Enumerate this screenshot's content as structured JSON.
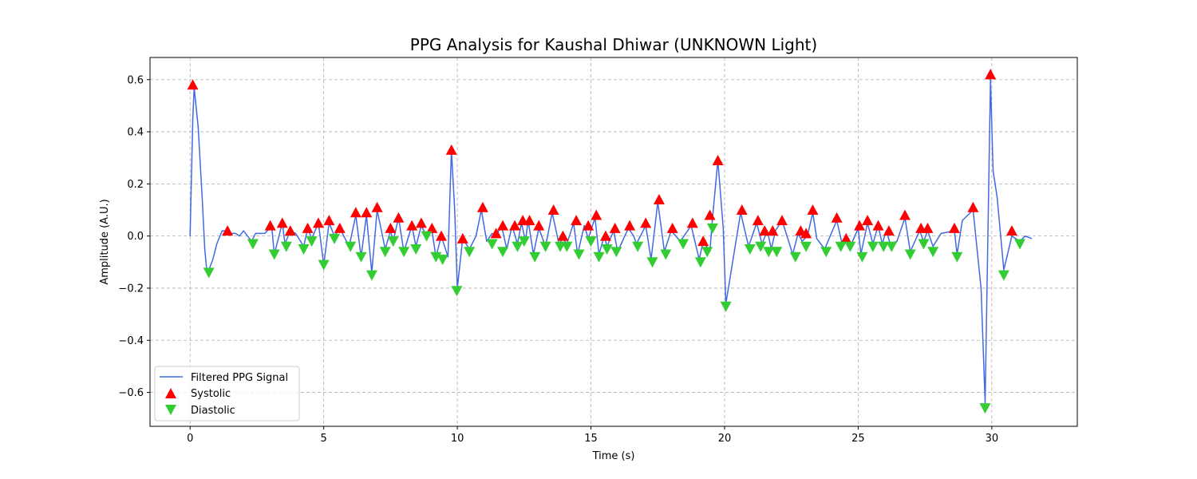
{
  "chart_data": {
    "type": "line",
    "title": "PPG Analysis for Kaushal Dhiwar (UNKNOWN Light)",
    "xlabel": "Time (s)",
    "ylabel": "Amplitude (A.U.)",
    "xlim": [
      -1.5,
      33.2
    ],
    "ylim": [
      -0.73,
      0.685
    ],
    "xticks": [
      0,
      5,
      10,
      15,
      20,
      25,
      30
    ],
    "xtick_labels": [
      "0",
      "5",
      "10",
      "15",
      "20",
      "25",
      "30"
    ],
    "yticks": [
      -0.6,
      -0.4,
      -0.2,
      0.0,
      0.2,
      0.4,
      0.6
    ],
    "ytick_labels": [
      "−0.6",
      "−0.4",
      "−0.2",
      "0.0",
      "0.2",
      "0.4",
      "0.6"
    ],
    "grid": true,
    "legend_position": "lower-left",
    "colors": {
      "signal": "#4169e1",
      "systolic": "#ff0000",
      "diastolic": "#32cd32"
    },
    "series": [
      {
        "name": "Filtered PPG Signal",
        "marker": "line",
        "x": [
          0,
          0.1,
          0.15,
          0.3,
          0.45,
          0.55,
          0.62,
          0.7,
          0.85,
          1.0,
          1.2,
          1.4,
          1.55,
          1.7,
          1.85,
          2.0,
          2.15,
          2.3,
          2.45,
          2.6,
          2.8,
          3.05,
          3.15,
          3.45,
          3.55,
          3.75,
          3.95,
          4.25,
          4.4,
          4.55,
          4.8,
          5.0,
          5.2,
          5.4,
          5.6,
          5.95,
          6.2,
          6.4,
          6.6,
          6.8,
          7.0,
          7.3,
          7.5,
          7.6,
          7.8,
          8.0,
          8.3,
          8.45,
          8.65,
          8.85,
          9.05,
          9.2,
          9.4,
          9.65,
          9.78,
          9.9,
          10.0,
          10.2,
          10.45,
          10.7,
          10.9,
          11.1,
          11.3,
          11.45,
          11.65,
          11.85,
          12.05,
          12.25,
          12.4,
          12.55,
          12.65,
          12.85,
          13.05,
          13.3,
          13.55,
          13.8,
          13.95,
          14.1,
          14.35,
          14.5,
          14.75,
          14.9,
          15.15,
          15.3,
          15.5,
          15.6,
          15.85,
          16.0,
          16.4,
          16.6,
          16.7,
          17.05,
          17.25,
          17.5,
          17.75,
          18.0,
          18.35,
          18.75,
          19.05,
          19.2,
          19.45,
          19.55,
          19.75,
          19.95,
          20.05,
          20.6,
          20.9,
          21.2,
          21.4,
          21.6,
          21.75,
          21.9,
          22.15,
          22.55,
          22.75,
          22.9,
          23.1,
          23.3,
          23.45,
          23.75,
          24.2,
          24.4,
          24.55,
          24.75,
          25.0,
          25.1,
          25.35,
          25.55,
          25.75,
          25.9,
          26.05,
          26.2,
          26.45,
          26.75,
          26.95,
          27.3,
          27.45,
          27.6,
          27.8,
          28.1,
          28.6,
          28.7,
          28.9,
          29.3,
          29.6,
          29.75,
          29.95,
          30.05,
          30.2,
          30.45,
          30.75,
          31.05,
          31.25,
          31.5
        ],
        "y": [
          0.0,
          0.45,
          0.57,
          0.42,
          0.15,
          -0.05,
          -0.13,
          -0.13,
          -0.09,
          -0.03,
          0.02,
          0.02,
          0.01,
          0.01,
          0.0,
          0.02,
          0.0,
          -0.02,
          0.01,
          0.01,
          0.01,
          0.04,
          -0.07,
          0.05,
          -0.03,
          0.02,
          0.01,
          -0.04,
          0.03,
          -0.01,
          0.05,
          -0.11,
          0.05,
          0.0,
          0.03,
          -0.04,
          0.08,
          -0.08,
          0.08,
          -0.14,
          0.1,
          -0.05,
          0.02,
          -0.02,
          0.07,
          -0.06,
          0.04,
          -0.04,
          0.04,
          0.0,
          0.02,
          -0.08,
          0.0,
          -0.08,
          0.33,
          0.1,
          -0.2,
          -0.01,
          -0.05,
          0.0,
          0.1,
          -0.02,
          0.01,
          0.0,
          0.04,
          -0.05,
          0.04,
          -0.03,
          0.05,
          -0.02,
          0.06,
          -0.07,
          0.03,
          -0.04,
          0.09,
          -0.03,
          -0.01,
          -0.03,
          0.05,
          -0.07,
          0.04,
          -0.01,
          0.07,
          -0.07,
          0.0,
          -0.04,
          0.02,
          -0.06,
          0.03,
          0.0,
          -0.03,
          0.04,
          -0.09,
          0.13,
          -0.06,
          0.02,
          -0.02,
          0.04,
          -0.09,
          -0.02,
          -0.06,
          0.07,
          0.29,
          0.03,
          -0.26,
          0.09,
          -0.04,
          0.05,
          -0.03,
          0.02,
          -0.05,
          0.02,
          0.06,
          -0.07,
          0.01,
          -0.02,
          0.0,
          0.09,
          -0.01,
          -0.05,
          0.06,
          -0.03,
          -0.01,
          -0.03,
          0.03,
          -0.07,
          0.05,
          -0.03,
          0.04,
          -0.03,
          0.02,
          -0.03,
          -0.02,
          0.07,
          -0.06,
          0.02,
          -0.02,
          0.02,
          -0.04,
          0.01,
          0.02,
          -0.07,
          0.06,
          0.1,
          -0.2,
          -0.64,
          0.6,
          0.25,
          0.15,
          -0.13,
          0.0,
          -0.02,
          0.0,
          -0.01
        ]
      },
      {
        "name": "Systolic",
        "marker": "triangle-up",
        "x": [
          0.1,
          1.4,
          3.0,
          3.45,
          3.75,
          4.4,
          4.8,
          5.2,
          5.6,
          6.2,
          6.6,
          7.0,
          7.5,
          7.8,
          8.3,
          8.65,
          9.05,
          9.4,
          9.78,
          10.2,
          10.95,
          11.45,
          11.7,
          12.15,
          12.45,
          12.7,
          13.05,
          13.6,
          13.95,
          14.45,
          14.9,
          15.2,
          15.55,
          15.9,
          16.45,
          17.05,
          17.55,
          18.05,
          18.8,
          19.2,
          19.45,
          19.75,
          20.65,
          21.25,
          21.5,
          21.8,
          22.15,
          22.85,
          23.05,
          23.3,
          24.2,
          24.55,
          25.05,
          25.35,
          25.75,
          26.15,
          26.75,
          27.35,
          27.6,
          28.6,
          29.3,
          29.95,
          30.75
        ],
        "y": [
          0.58,
          0.02,
          0.04,
          0.05,
          0.02,
          0.03,
          0.05,
          0.06,
          0.03,
          0.09,
          0.09,
          0.11,
          0.03,
          0.07,
          0.04,
          0.05,
          0.03,
          0.0,
          0.33,
          -0.01,
          0.11,
          0.01,
          0.04,
          0.04,
          0.06,
          0.06,
          0.04,
          0.1,
          0.0,
          0.06,
          0.04,
          0.08,
          0.0,
          0.03,
          0.04,
          0.05,
          0.14,
          0.03,
          0.05,
          -0.02,
          0.08,
          0.29,
          0.1,
          0.06,
          0.02,
          0.02,
          0.06,
          0.02,
          0.01,
          0.1,
          0.07,
          -0.01,
          0.04,
          0.06,
          0.04,
          0.02,
          0.08,
          0.03,
          0.03,
          0.03,
          0.11,
          0.62,
          0.02
        ]
      },
      {
        "name": "Diastolic",
        "marker": "triangle-down",
        "x": [
          0.7,
          2.35,
          3.15,
          3.6,
          4.25,
          4.55,
          5.0,
          5.4,
          6.0,
          6.4,
          6.8,
          7.3,
          7.6,
          8.0,
          8.45,
          8.85,
          9.2,
          9.45,
          9.98,
          10.45,
          11.3,
          11.7,
          12.25,
          12.5,
          12.9,
          13.3,
          13.85,
          14.1,
          14.55,
          15.0,
          15.3,
          15.6,
          15.95,
          16.75,
          17.3,
          17.8,
          18.45,
          19.1,
          19.35,
          19.55,
          20.05,
          20.95,
          21.35,
          21.65,
          21.95,
          22.65,
          23.05,
          23.8,
          24.35,
          24.7,
          25.15,
          25.55,
          25.95,
          26.25,
          26.95,
          27.45,
          27.8,
          28.7,
          29.75,
          30.45,
          31.05
        ],
        "y": [
          -0.14,
          -0.03,
          -0.07,
          -0.04,
          -0.05,
          -0.02,
          -0.11,
          -0.01,
          -0.04,
          -0.08,
          -0.15,
          -0.06,
          -0.02,
          -0.06,
          -0.05,
          0.0,
          -0.08,
          -0.09,
          -0.21,
          -0.06,
          -0.03,
          -0.06,
          -0.04,
          -0.02,
          -0.08,
          -0.04,
          -0.04,
          -0.04,
          -0.07,
          -0.02,
          -0.08,
          -0.05,
          -0.06,
          -0.04,
          -0.1,
          -0.07,
          -0.03,
          -0.1,
          -0.06,
          0.03,
          -0.27,
          -0.05,
          -0.04,
          -0.06,
          -0.06,
          -0.08,
          -0.04,
          -0.06,
          -0.04,
          -0.04,
          -0.08,
          -0.04,
          -0.04,
          -0.04,
          -0.07,
          -0.03,
          -0.06,
          -0.08,
          -0.66,
          -0.15,
          -0.03
        ]
      }
    ]
  }
}
